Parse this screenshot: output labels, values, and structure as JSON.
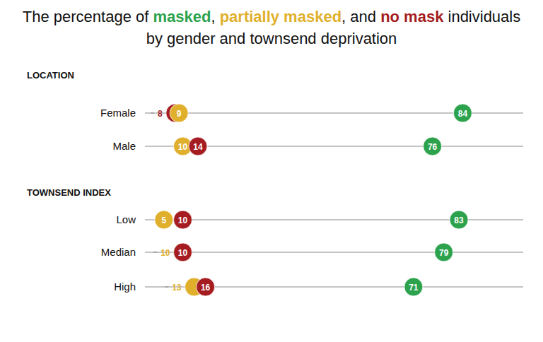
{
  "chart_data": {
    "type": "dot",
    "title": "The percentage of masked, partially masked, and no mask individuals by gender and townsend deprivation",
    "groups": [
      {
        "name": "LOCATION",
        "categories": [
          "Female",
          "Male"
        ]
      },
      {
        "name": "TOWNSEND INDEX",
        "categories": [
          "Low",
          "Median",
          "High"
        ]
      }
    ],
    "series": [
      {
        "name": "masked",
        "color": "#2ca24d",
        "values": [
          84,
          76,
          83,
          79,
          71
        ]
      },
      {
        "name": "partially masked",
        "color": "#e0b02c",
        "values": [
          9,
          10,
          5,
          10,
          13
        ]
      },
      {
        "name": "no mask",
        "color": "#a51d21",
        "values": [
          8,
          14,
          10,
          10,
          16
        ]
      }
    ],
    "xlim": [
      0,
      100
    ],
    "data_labels": true,
    "tick_labels": false,
    "grid": false
  }
}
